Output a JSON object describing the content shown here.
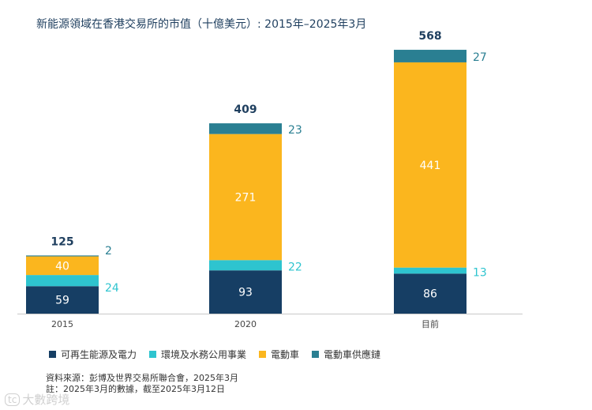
{
  "chart_data": {
    "type": "bar",
    "stacked": true,
    "title": "新能源領域在香港交易所的市值（十億美元）: 2015年–2025年3月",
    "categories": [
      "2015",
      "2020",
      "目前"
    ],
    "series": [
      {
        "name": "可再生能源及電力",
        "color": "#163e64",
        "label_color": "#ffffff",
        "values": [
          59,
          93,
          86
        ]
      },
      {
        "name": "環境及水務公用事業",
        "color": "#2ec4cf",
        "label_color": "#2ec4cf",
        "values": [
          24,
          22,
          13
        ]
      },
      {
        "name": "電動車",
        "color": "#fbb61e",
        "label_color": "#ffffff",
        "values": [
          40,
          271,
          441
        ]
      },
      {
        "name": "電動車供應鏈",
        "color": "#2a7f92",
        "label_color": "#2a7f92",
        "values": [
          2,
          23,
          27
        ]
      }
    ],
    "totals": [
      125,
      409,
      568
    ],
    "ylim": [
      0,
      600
    ],
    "xlabel": "",
    "ylabel": "",
    "grid": false,
    "legend_position": "bottom"
  },
  "footnote": {
    "source": "資料來源：彭博及世界交易所聯合會，2025年3月",
    "note": "註：2025年3月的數據，截至2025年3月12日"
  },
  "watermark": {
    "mark": "tc",
    "text": "大數跨境"
  }
}
